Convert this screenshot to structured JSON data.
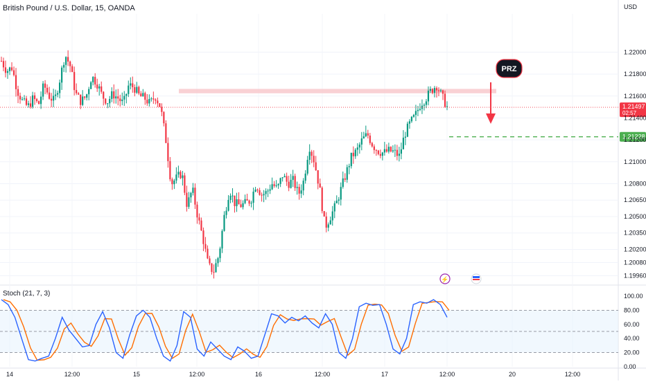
{
  "header": {
    "title": "British Pound / U.S. Dollar, 15, OANDA",
    "currency": "USD"
  },
  "colors": {
    "up": "#089981",
    "down": "#f23645",
    "stoch_k": "#2962ff",
    "stoch_d": "#ff6d00",
    "target": "#4caf50",
    "zone": "#f8c9cd"
  },
  "chart_data": [
    {
      "type": "candlestick",
      "y_ticks": [
        "1.22000",
        "1.21800",
        "1.21600",
        "1.21400",
        "1.21200",
        "1.21000",
        "1.20800",
        "1.20650",
        "1.20500",
        "1.20350",
        "1.20200",
        "1.20080",
        "1.19960"
      ],
      "ylim": [
        1.199,
        1.2235
      ],
      "x_ticks": [
        "14",
        "12:00",
        "15",
        "12:00",
        "16",
        "12:00",
        "17",
        "12:00",
        "20",
        "12:00"
      ],
      "price_label": {
        "value": "1.21497",
        "countdown": "02:57"
      },
      "target_label": "1.21228",
      "target_value": 1.21228,
      "resistance_zone": [
        1.21625,
        1.21665
      ],
      "annotation": "PRZ",
      "path": [
        1.2192,
        1.2183,
        1.2186,
        1.2165,
        1.2155,
        1.215,
        1.2158,
        1.2152,
        1.217,
        1.216,
        1.2155,
        1.2175,
        1.2198,
        1.2187,
        1.2162,
        1.2155,
        1.216,
        1.2178,
        1.2172,
        1.216,
        1.2155,
        1.2162,
        1.2158,
        1.2153,
        1.217,
        1.2168,
        1.216,
        1.2158,
        1.2153,
        1.216,
        1.215,
        1.212,
        1.208,
        1.2085,
        1.209,
        1.206,
        1.2075,
        1.205,
        1.203,
        1.2005,
        1.2,
        1.2015,
        1.205,
        1.2075,
        1.2062,
        1.206,
        1.2062,
        1.2065,
        1.208,
        1.207,
        1.2072,
        1.208,
        1.2075,
        1.2088,
        1.208,
        1.2083,
        1.207,
        1.2083,
        1.2115,
        1.21,
        1.2075,
        1.204,
        1.205,
        1.206,
        1.2075,
        1.209,
        1.2105,
        1.211,
        1.212,
        1.2125,
        1.2115,
        1.211,
        1.2108,
        1.211,
        1.2109,
        1.2105,
        1.2125,
        1.2135,
        1.2142,
        1.2153,
        1.2158,
        1.2165,
        1.217,
        1.216,
        1.215
      ],
      "stoch_ticks": [
        "100.00",
        "80.00",
        "60.00",
        "40.00",
        "20.00",
        "0.00"
      ],
      "stoch_levels": [
        80,
        50,
        20
      ],
      "stoch_k": [
        95,
        88,
        70,
        40,
        10,
        8,
        12,
        15,
        40,
        70,
        52,
        40,
        28,
        30,
        60,
        78,
        55,
        20,
        12,
        45,
        72,
        80,
        70,
        40,
        15,
        8,
        30,
        78,
        70,
        25,
        15,
        35,
        25,
        15,
        10,
        28,
        22,
        12,
        15,
        45,
        75,
        72,
        62,
        70,
        65,
        72,
        62,
        55,
        75,
        60,
        20,
        12,
        40,
        85,
        90,
        87,
        88,
        60,
        25,
        18,
        40,
        88,
        92,
        90,
        95,
        88,
        70
      ]
    }
  ]
}
